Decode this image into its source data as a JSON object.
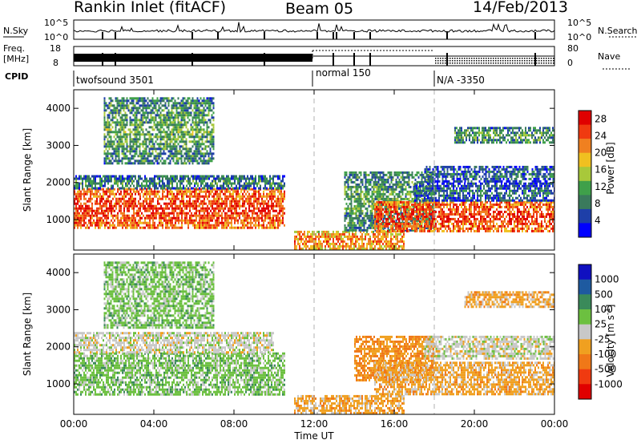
{
  "header": {
    "station": "Rankin Inlet (fitACF)",
    "beam": "Beam 05",
    "date": "14/Feb/2013"
  },
  "summary": {
    "nsky_label": "N.Sky",
    "nsky_ticks": [
      "10^5",
      "10^0"
    ],
    "nsearch_label": "N.Search",
    "freq_label": "Freq.",
    "freq_unit": "[MHz]",
    "freq_ticks": [
      "18",
      "8"
    ],
    "nave_label": "Nave",
    "nave_ticks": [
      "80",
      "0"
    ],
    "cpid_label": "CPID",
    "cpid_segments": [
      {
        "label": "twofsound 3501",
        "start_hour": 0
      },
      {
        "label": "normal 150",
        "start_hour": 12
      },
      {
        "label": "N/A -3350",
        "start_hour": 18
      }
    ]
  },
  "colors": {
    "power": [
      "#0000ff",
      "#1e3fa8",
      "#3a7a5c",
      "#3fa04a",
      "#a8c83a",
      "#f0c020",
      "#f08020",
      "#f03a10",
      "#e00000"
    ],
    "velocity": [
      "#e00000",
      "#f03a10",
      "#f07818",
      "#f0a020",
      "#c8c8c8",
      "#6cc040",
      "#3a8a5a",
      "#1e5aa0",
      "#1010c0"
    ],
    "ground_scatter": "#c8c8c8"
  },
  "chart_data": [
    {
      "type": "heatmap",
      "panel": "power",
      "xlabel": "Time UT",
      "ylabel": "Slant Range [km]",
      "x_ticks": [
        "00:00",
        "04:00",
        "08:00",
        "12:00",
        "16:00",
        "20:00",
        "00:00"
      ],
      "y_ticks": [
        "1000",
        "2000",
        "3000",
        "4000"
      ],
      "xlim": [
        0,
        24
      ],
      "ylim": [
        180,
        4500
      ],
      "colorbar": {
        "label": "Power [dB]",
        "ticks": [
          "4",
          "8",
          "12",
          "16",
          "20",
          "24",
          "28"
        ],
        "range": [
          0,
          30
        ]
      },
      "bands": [
        {
          "t": [
            0,
            10.5
          ],
          "r": [
            800,
            1850
          ],
          "value": 26
        },
        {
          "t": [
            0,
            10.5
          ],
          "r": [
            1850,
            2200
          ],
          "value": 10
        },
        {
          "t": [
            1.5,
            7
          ],
          "r": [
            2500,
            4300
          ],
          "value": 12
        },
        {
          "t": [
            11,
            16.5
          ],
          "r": [
            200,
            700
          ],
          "value": 22
        },
        {
          "t": [
            13.5,
            18
          ],
          "r": [
            700,
            2300
          ],
          "value": 12
        },
        {
          "t": [
            15,
            24
          ],
          "r": [
            700,
            1500
          ],
          "value": 26
        },
        {
          "t": [
            17,
            24
          ],
          "r": [
            1500,
            2000
          ],
          "value": 8
        },
        {
          "t": [
            17.5,
            24
          ],
          "r": [
            2000,
            2450
          ],
          "value": 8
        },
        {
          "t": [
            19,
            24
          ],
          "r": [
            3100,
            3500
          ],
          "value": 12
        }
      ]
    },
    {
      "type": "heatmap",
      "panel": "velocity",
      "xlabel": "Time UT",
      "ylabel": "Slant Range [km]",
      "x_ticks": [
        "00:00",
        "04:00",
        "08:00",
        "12:00",
        "16:00",
        "20:00",
        "00:00"
      ],
      "y_ticks": [
        "1000",
        "2000",
        "3000",
        "4000"
      ],
      "xlim": [
        0,
        24
      ],
      "ylim": [
        180,
        4500
      ],
      "colorbar": {
        "label": "Velocity [m s^-1]",
        "ticks": [
          "1000",
          "500",
          "100",
          "25",
          "-25",
          "-100",
          "-500",
          "-1000"
        ],
        "range": [
          -1200,
          1200
        ]
      },
      "bands": [
        {
          "t": [
            0,
            10.5
          ],
          "r": [
            700,
            1850
          ],
          "value": 250
        },
        {
          "t": [
            0,
            10
          ],
          "r": [
            1850,
            2400
          ],
          "value": 0
        },
        {
          "t": [
            1.5,
            7
          ],
          "r": [
            2500,
            4300
          ],
          "value": 250
        },
        {
          "t": [
            11,
            16.5
          ],
          "r": [
            200,
            700
          ],
          "value": -250
        },
        {
          "t": [
            14,
            18
          ],
          "r": [
            1100,
            2300
          ],
          "value": -400
        },
        {
          "t": [
            15,
            24
          ],
          "r": [
            700,
            1600
          ],
          "value": -250
        },
        {
          "t": [
            17.5,
            24
          ],
          "r": [
            1700,
            2300
          ],
          "value": 0
        },
        {
          "t": [
            19.5,
            24
          ],
          "r": [
            3100,
            3500
          ],
          "value": -250
        }
      ]
    }
  ]
}
